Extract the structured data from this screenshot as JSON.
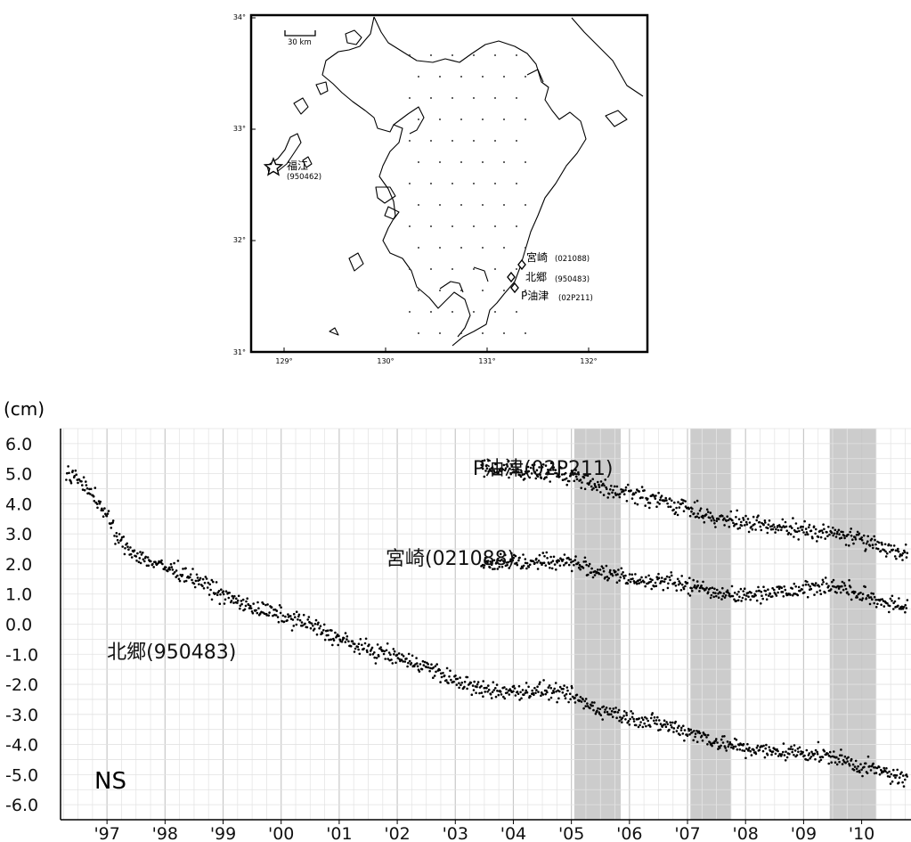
{
  "map": {
    "scale_label": "30 km",
    "lat_ticks": [
      "34°",
      "33°",
      "32°",
      "31°"
    ],
    "lon_ticks": [
      "129°",
      "130°",
      "131°",
      "132°"
    ],
    "stations": [
      {
        "name": "福江",
        "code": "(950462)",
        "marker": "star"
      },
      {
        "name": "宮崎",
        "code": "(021088)",
        "marker": "diamond"
      },
      {
        "name": "北郷",
        "code": "(950483)",
        "marker": "diamond"
      },
      {
        "name": "P油津",
        "code": "(02P211)",
        "marker": "diamond"
      }
    ]
  },
  "chart_data": {
    "type": "scatter",
    "ylabel": "(cm)",
    "panel_label": "NS",
    "ylim": [
      -6.5,
      6.5
    ],
    "yticks": [
      "6.0",
      "5.0",
      "4.0",
      "3.0",
      "2.0",
      "1.0",
      "0.0",
      "-1.0",
      "-2.0",
      "-3.0",
      "-4.0",
      "-5.0",
      "-6.0"
    ],
    "xlim": [
      1996.2,
      2010.85
    ],
    "xticks": [
      {
        "x": 1997.0,
        "label": "'97"
      },
      {
        "x": 1998.0,
        "label": "'98"
      },
      {
        "x": 1999.0,
        "label": "'99"
      },
      {
        "x": 2000.0,
        "label": "'00"
      },
      {
        "x": 2001.0,
        "label": "'01"
      },
      {
        "x": 2002.0,
        "label": "'02"
      },
      {
        "x": 2003.0,
        "label": "'03"
      },
      {
        "x": 2004.0,
        "label": "'04"
      },
      {
        "x": 2005.0,
        "label": "'05"
      },
      {
        "x": 2006.0,
        "label": "'06"
      },
      {
        "x": 2007.0,
        "label": "'07"
      },
      {
        "x": 2008.0,
        "label": "'08"
      },
      {
        "x": 2009.0,
        "label": "'09"
      },
      {
        "x": 2010.0,
        "label": "'10"
      }
    ],
    "shaded_periods": [
      [
        2005.05,
        2005.85
      ],
      [
        2007.05,
        2007.75
      ],
      [
        2009.45,
        2010.25
      ]
    ],
    "series": [
      {
        "name": "P油津(02P211)",
        "label_x": 2003.3,
        "label_y": 5.2,
        "points": [
          [
            2003.45,
            5.2
          ],
          [
            2004.0,
            5.1
          ],
          [
            2004.5,
            5.05
          ],
          [
            2005.0,
            5.0
          ],
          [
            2005.5,
            4.55
          ],
          [
            2006.0,
            4.35
          ],
          [
            2006.5,
            4.1
          ],
          [
            2007.0,
            3.85
          ],
          [
            2007.5,
            3.5
          ],
          [
            2008.0,
            3.35
          ],
          [
            2008.5,
            3.2
          ],
          [
            2009.0,
            3.15
          ],
          [
            2009.5,
            3.05
          ],
          [
            2010.0,
            2.8
          ],
          [
            2010.5,
            2.5
          ],
          [
            2010.8,
            2.35
          ]
        ]
      },
      {
        "name": "宮崎(021088)",
        "label_x": 2001.8,
        "label_y": 2.2,
        "points": [
          [
            2003.45,
            2.0
          ],
          [
            2004.0,
            2.05
          ],
          [
            2004.5,
            2.1
          ],
          [
            2005.0,
            2.1
          ],
          [
            2005.5,
            1.7
          ],
          [
            2006.0,
            1.5
          ],
          [
            2006.5,
            1.45
          ],
          [
            2007.0,
            1.3
          ],
          [
            2007.5,
            1.05
          ],
          [
            2008.0,
            0.95
          ],
          [
            2008.5,
            1.1
          ],
          [
            2009.0,
            1.2
          ],
          [
            2009.5,
            1.3
          ],
          [
            2010.0,
            0.95
          ],
          [
            2010.5,
            0.7
          ],
          [
            2010.8,
            0.55
          ]
        ]
      },
      {
        "name": "北郷(950483)",
        "label_x": 1997.0,
        "label_y": -0.9,
        "points": [
          [
            1996.3,
            5.0
          ],
          [
            1996.6,
            4.7
          ],
          [
            1996.9,
            3.9
          ],
          [
            1997.2,
            2.8
          ],
          [
            1997.6,
            2.2
          ],
          [
            1998.0,
            1.9
          ],
          [
            1998.5,
            1.55
          ],
          [
            1999.0,
            0.95
          ],
          [
            1999.5,
            0.55
          ],
          [
            2000.0,
            0.3
          ],
          [
            2000.5,
            0.0
          ],
          [
            2001.0,
            -0.5
          ],
          [
            2001.5,
            -0.85
          ],
          [
            2002.0,
            -1.1
          ],
          [
            2002.5,
            -1.4
          ],
          [
            2003.0,
            -1.9
          ],
          [
            2003.5,
            -2.2
          ],
          [
            2004.0,
            -2.25
          ],
          [
            2004.5,
            -2.2
          ],
          [
            2005.0,
            -2.4
          ],
          [
            2005.5,
            -2.85
          ],
          [
            2006.0,
            -3.1
          ],
          [
            2006.5,
            -3.3
          ],
          [
            2007.0,
            -3.55
          ],
          [
            2007.5,
            -3.9
          ],
          [
            2008.0,
            -4.15
          ],
          [
            2008.5,
            -4.25
          ],
          [
            2009.0,
            -4.25
          ],
          [
            2009.5,
            -4.4
          ],
          [
            2010.0,
            -4.75
          ],
          [
            2010.5,
            -5.0
          ],
          [
            2010.8,
            -5.2
          ]
        ]
      }
    ]
  }
}
